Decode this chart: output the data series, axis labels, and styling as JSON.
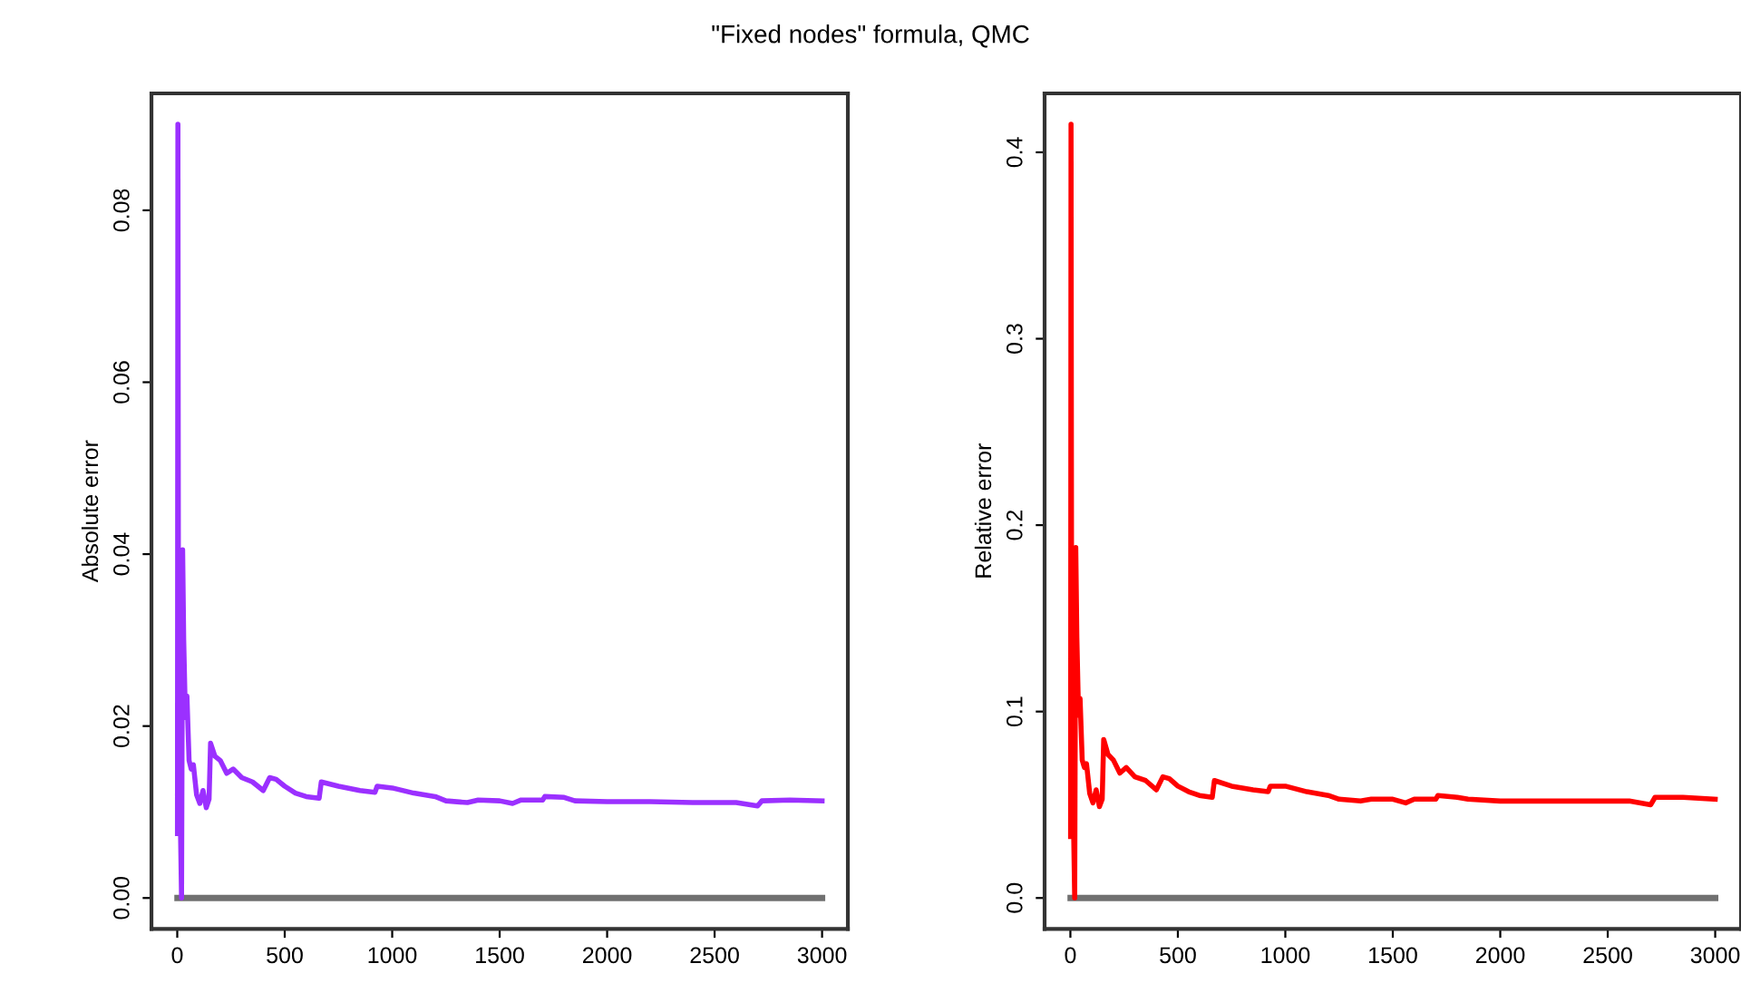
{
  "chart_data": [
    {
      "type": "line",
      "title": "\"Fixed nodes\" formula, QMC",
      "ylabel": "Absolute error",
      "xlim": [
        -120,
        3120
      ],
      "ylim": [
        -0.0036,
        0.0936
      ],
      "xticks": [
        0,
        500,
        1000,
        1500,
        2000,
        2500,
        3000
      ],
      "yticks": [
        {
          "value": 0,
          "label": "0.00"
        },
        {
          "value": 0.02,
          "label": "0.02"
        },
        {
          "value": 0.04,
          "label": "0.04"
        },
        {
          "value": 0.06,
          "label": "0.06"
        },
        {
          "value": 0.08,
          "label": "0.08"
        }
      ],
      "grid": false,
      "legend": false,
      "series": [
        {
          "color": "#9b30ff",
          "x": [
            1,
            3,
            6,
            10,
            15,
            20,
            25,
            30,
            38,
            45,
            55,
            65,
            75,
            90,
            105,
            120,
            135,
            148,
            155,
            175,
            200,
            230,
            260,
            300,
            350,
            400,
            430,
            460,
            500,
            550,
            600,
            660,
            670,
            750,
            850,
            920,
            930,
            1000,
            1100,
            1200,
            1250,
            1350,
            1400,
            1500,
            1560,
            1600,
            1700,
            1710,
            1800,
            1850,
            2000,
            2200,
            2400,
            2600,
            2700,
            2720,
            2850,
            3000
          ],
          "values": [
            0.0075,
            0.09,
            0.02,
            0.031,
            0.008,
            0.0,
            0.0405,
            0.03,
            0.021,
            0.0235,
            0.016,
            0.015,
            0.0155,
            0.012,
            0.011,
            0.0125,
            0.0105,
            0.0115,
            0.018,
            0.0165,
            0.016,
            0.0145,
            0.015,
            0.014,
            0.0135,
            0.0125,
            0.014,
            0.0138,
            0.013,
            0.0122,
            0.0118,
            0.0116,
            0.0135,
            0.013,
            0.0125,
            0.0123,
            0.013,
            0.0128,
            0.0122,
            0.0118,
            0.0113,
            0.0111,
            0.0114,
            0.0113,
            0.011,
            0.0114,
            0.0114,
            0.0118,
            0.0117,
            0.0113,
            0.0112,
            0.0112,
            0.0111,
            0.0111,
            0.0107,
            0.0113,
            0.0114,
            0.0113
          ]
        },
        {
          "color": "#707070",
          "x": [
            1,
            3000
          ],
          "values": [
            0,
            0
          ]
        }
      ]
    },
    {
      "type": "line",
      "ylabel": "Relative error",
      "xlim": [
        -120,
        3120
      ],
      "ylim": [
        -0.0166,
        0.4316
      ],
      "xticks": [
        0,
        500,
        1000,
        1500,
        2000,
        2500,
        3000
      ],
      "yticks": [
        {
          "value": 0,
          "label": "0.0"
        },
        {
          "value": 0.1,
          "label": "0.1"
        },
        {
          "value": 0.2,
          "label": "0.2"
        },
        {
          "value": 0.3,
          "label": "0.3"
        },
        {
          "value": 0.4,
          "label": "0.4"
        }
      ],
      "grid": false,
      "legend": false,
      "series": [
        {
          "color": "#ff0000",
          "x": [
            1,
            3,
            6,
            10,
            15,
            20,
            25,
            30,
            38,
            45,
            55,
            65,
            75,
            90,
            105,
            120,
            135,
            148,
            155,
            175,
            200,
            230,
            260,
            300,
            350,
            400,
            430,
            460,
            500,
            550,
            600,
            660,
            670,
            750,
            850,
            920,
            930,
            1000,
            1100,
            1200,
            1250,
            1350,
            1400,
            1500,
            1560,
            1600,
            1700,
            1710,
            1800,
            1850,
            2000,
            2200,
            2400,
            2600,
            2700,
            2720,
            2850,
            3000
          ],
          "values": [
            0.033,
            0.415,
            0.093,
            0.144,
            0.037,
            0.0,
            0.188,
            0.14,
            0.098,
            0.107,
            0.074,
            0.07,
            0.072,
            0.056,
            0.051,
            0.058,
            0.049,
            0.053,
            0.085,
            0.077,
            0.074,
            0.067,
            0.07,
            0.065,
            0.063,
            0.058,
            0.065,
            0.064,
            0.06,
            0.057,
            0.055,
            0.054,
            0.063,
            0.06,
            0.058,
            0.057,
            0.06,
            0.06,
            0.057,
            0.055,
            0.053,
            0.052,
            0.053,
            0.053,
            0.051,
            0.053,
            0.053,
            0.055,
            0.054,
            0.053,
            0.052,
            0.052,
            0.052,
            0.052,
            0.05,
            0.054,
            0.054,
            0.053
          ]
        },
        {
          "color": "#707070",
          "x": [
            1,
            3000
          ],
          "values": [
            0,
            0
          ]
        }
      ]
    }
  ]
}
